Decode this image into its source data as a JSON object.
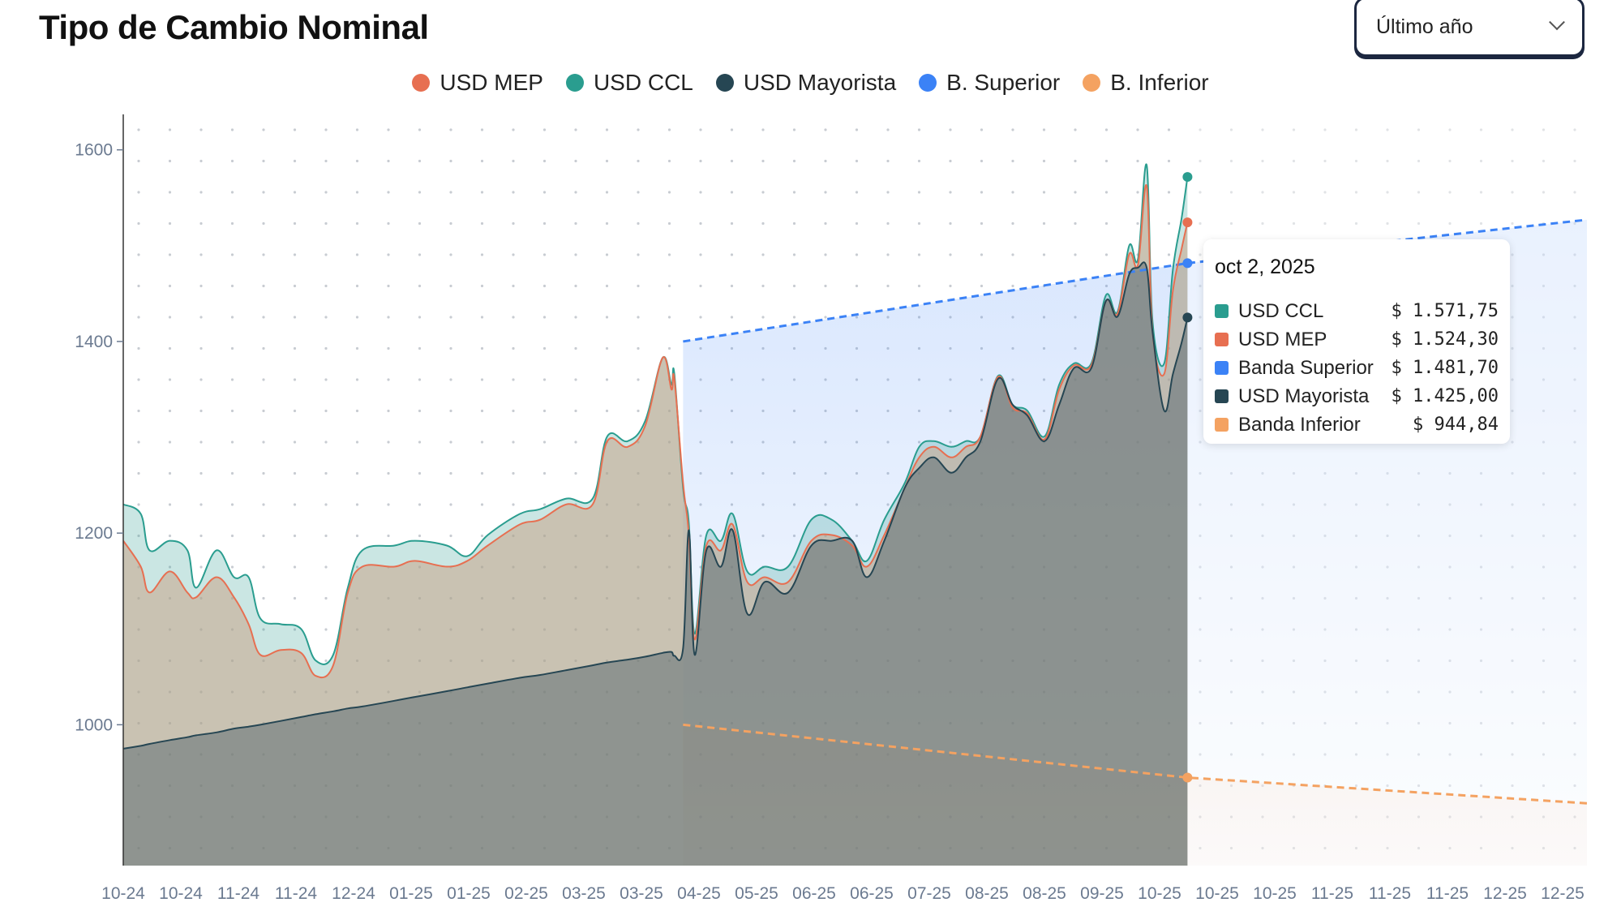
{
  "header": {
    "title": "Tipo de Cambio Nominal",
    "period_select": "Último año"
  },
  "legend": [
    {
      "label": "USD MEP",
      "color": "#e76f51"
    },
    {
      "label": "USD CCL",
      "color": "#2a9d8f"
    },
    {
      "label": "USD Mayorista",
      "color": "#264653"
    },
    {
      "label": "B. Superior",
      "color": "#3b82f6"
    },
    {
      "label": "B. Inferior",
      "color": "#f4a261"
    }
  ],
  "tooltip": {
    "date": "oct 2, 2025",
    "rows": [
      {
        "label": "USD CCL",
        "value": "$ 1.571,75",
        "color": "#2a9d8f"
      },
      {
        "label": "USD MEP",
        "value": "$ 1.524,30",
        "color": "#e76f51"
      },
      {
        "label": "Banda Superior",
        "value": "$ 1.481,70",
        "color": "#3b82f6"
      },
      {
        "label": "USD Mayorista",
        "value": "$ 1.425,00",
        "color": "#264653"
      },
      {
        "label": "Banda Inferior",
        "value": "$ 944,84",
        "color": "#f4a261"
      }
    ]
  },
  "chart_data": {
    "type": "area",
    "title": "Tipo de Cambio Nominal",
    "xlabel": "",
    "ylabel": "",
    "x_unit": "days since 2024-10-02",
    "xlim": [
      0,
      502
    ],
    "ylim": [
      853,
      1637
    ],
    "yticks": [
      1000,
      1200,
      1400,
      1600
    ],
    "xtick_labels": [
      "10-24",
      "10-24",
      "11-24",
      "11-24",
      "12-24",
      "01-25",
      "01-25",
      "02-25",
      "03-25",
      "03-25",
      "04-25",
      "05-25",
      "06-25",
      "06-25",
      "07-25",
      "08-25",
      "08-25",
      "09-25",
      "10-25",
      "10-25",
      "10-25",
      "11-25",
      "11-25",
      "11-25",
      "12-25",
      "12-25"
    ],
    "grid": "dotted",
    "legend_position": "top-center",
    "x": [
      0,
      6,
      9,
      16,
      22,
      25,
      32,
      38,
      43,
      47,
      54,
      61,
      66,
      72,
      77,
      82,
      93,
      100,
      111,
      118,
      125,
      136,
      143,
      152,
      161,
      166,
      173,
      179,
      185,
      188,
      189,
      192,
      194,
      196,
      200,
      205,
      209,
      214,
      220,
      228,
      236,
      243,
      250,
      255,
      261,
      268,
      273,
      278,
      284,
      289,
      294,
      300,
      305,
      310,
      316,
      321,
      326,
      332,
      337,
      341,
      345,
      348,
      351,
      353,
      357,
      360,
      363,
      365
    ],
    "series": [
      {
        "name": "USD CCL",
        "color": "#2a9d8f",
        "values": [
          1230,
          1220,
          1182,
          1192,
          1182,
          1143,
          1182,
          1154,
          1154,
          1111,
          1105,
          1100,
          1067,
          1073,
          1143,
          1182,
          1187,
          1192,
          1187,
          1176,
          1198,
          1220,
          1225,
          1236,
          1236,
          1301,
          1296,
          1317,
          1383,
          1355,
          1366,
          1247,
          1210,
          1095,
          1198,
          1192,
          1220,
          1160,
          1165,
          1165,
          1214,
          1214,
          1192,
          1171,
          1214,
          1252,
          1290,
          1296,
          1290,
          1296,
          1301,
          1364,
          1334,
          1328,
          1301,
          1355,
          1377,
          1377,
          1448,
          1431,
          1500,
          1486,
          1584,
          1421,
          1377,
          1475,
          1529,
          1571.75
        ]
      },
      {
        "name": "USD MEP",
        "color": "#e76f51",
        "values": [
          1192,
          1165,
          1138,
          1160,
          1138,
          1133,
          1154,
          1133,
          1105,
          1073,
          1078,
          1075,
          1051,
          1062,
          1138,
          1165,
          1165,
          1171,
          1165,
          1171,
          1187,
          1209,
          1214,
          1230,
          1230,
          1296,
          1290,
          1312,
          1383,
          1350,
          1361,
          1252,
          1198,
          1089,
          1187,
          1182,
          1209,
          1149,
          1154,
          1149,
          1192,
          1198,
          1187,
          1165,
          1198,
          1247,
          1279,
          1290,
          1279,
          1290,
          1301,
          1363,
          1331,
          1325,
          1298,
          1350,
          1375,
          1375,
          1442,
          1429,
          1491,
          1480,
          1562,
          1410,
          1366,
          1453,
          1497,
          1524.3
        ]
      },
      {
        "name": "USD Mayorista",
        "color": "#264653",
        "values": [
          975,
          978,
          980,
          984,
          987,
          989,
          992,
          996,
          998,
          1000,
          1004,
          1008,
          1011,
          1014,
          1017,
          1019,
          1025,
          1029,
          1035,
          1039,
          1043,
          1049,
          1052,
          1057,
          1062,
          1065,
          1068,
          1071,
          1075,
          1076,
          1072,
          1080,
          1203,
          1073,
          1182,
          1165,
          1203,
          1116,
          1149,
          1138,
          1187,
          1192,
          1192,
          1154,
          1192,
          1247,
          1268,
          1279,
          1263,
          1279,
          1296,
          1361,
          1334,
          1323,
          1296,
          1334,
          1372,
          1372,
          1442,
          1426,
          1470,
          1477,
          1477,
          1410,
          1328,
          1366,
          1399,
          1425
        ]
      }
    ],
    "bands": [
      {
        "name": "B. Superior",
        "color": "#3b82f6",
        "x": [
          192,
          365,
          502
        ],
        "values": [
          1400,
          1481.7,
          1527
        ]
      },
      {
        "name": "B. Inferior",
        "color": "#f4a261",
        "x": [
          192,
          365,
          502
        ],
        "values": [
          1000,
          944.84,
          918
        ]
      }
    ],
    "highlight_x": 365
  }
}
